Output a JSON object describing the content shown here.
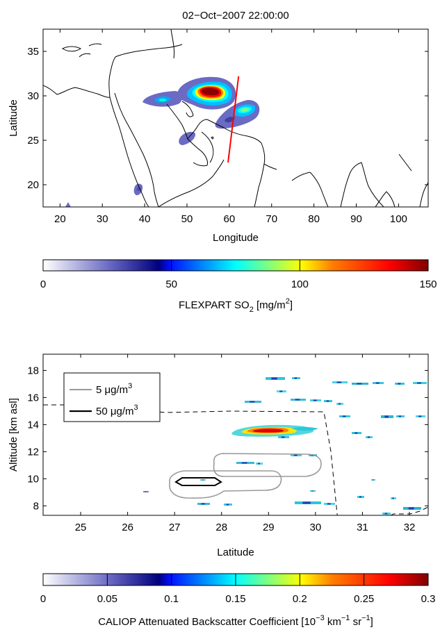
{
  "title": "02−Oct−2007 22:00:00",
  "colors": {
    "red_line": "#ff0000",
    "contour_5": "#999999",
    "contour_50": "#000000",
    "colormap": [
      "#ffffff",
      "#6b6bc4",
      "#00007f",
      "#00ffff",
      "#ffff00",
      "#ff7f00",
      "#ff0000",
      "#7f0000"
    ]
  },
  "map_panel": {
    "xlabel": "Longitude",
    "ylabel": "Latitude",
    "xlim": [
      16,
      107
    ],
    "ylim": [
      17.5,
      37.5
    ],
    "xticks": [
      "20",
      "30",
      "40",
      "50",
      "60",
      "70",
      "80",
      "90",
      "100"
    ],
    "yticks": [
      "20",
      "25",
      "30",
      "35"
    ]
  },
  "colorbar1": {
    "label_main": "FLEXPART SO",
    "label_sub": "2",
    "label_mid": " [mg/m",
    "label_sup": "2",
    "label_end": "]",
    "ticks": [
      "0",
      "50",
      "100",
      "150"
    ]
  },
  "curtain_panel": {
    "xlabel": "Latitude",
    "ylabel": "Altitude [km asl]",
    "xlim": [
      24.2,
      32.4
    ],
    "ylim": [
      7.3,
      19.2
    ],
    "xticks": [
      "25",
      "26",
      "27",
      "28",
      "29",
      "30",
      "31",
      "32"
    ],
    "yticks": [
      "8",
      "10",
      "12",
      "14",
      "16",
      "18"
    ],
    "legend": {
      "item1_value": "5 μg/m",
      "item1_sup": "3",
      "item2_value": "50 μg/m",
      "item2_sup": "3"
    }
  },
  "colorbar2": {
    "label_main": "CALIOP Attenuated Backscatter Coefficient [10",
    "label_sup1": "−3",
    "label_mid": " km",
    "label_sup2": "−1",
    "label_mid2": "  sr",
    "label_sup3": "−1",
    "label_end": "]",
    "ticks": [
      "0",
      "0.05",
      "0.1",
      "0.15",
      "0.2",
      "0.25",
      "0.3"
    ]
  },
  "chart_data": [
    {
      "type": "heatmap",
      "description_source": "FLEXPART SO2 column map",
      "xlabel": "Longitude",
      "ylabel": "Latitude",
      "xlim": [
        16,
        107
      ],
      "ylim": [
        17.5,
        37.5
      ],
      "colorbar_range": [
        0,
        150
      ],
      "colorbar_label": "FLEXPART SO2 [mg/m2]",
      "plume_blobs": [
        {
          "lon": 43.5,
          "lat": 29.5,
          "peak": 30
        },
        {
          "lon": 56,
          "lat": 30.5,
          "peak": 150
        },
        {
          "lon": 64,
          "lat": 28.5,
          "peak": 70
        },
        {
          "lon": 52,
          "lat": 25,
          "peak": 25
        },
        {
          "lon": 39,
          "lat": 19.5,
          "peak": 25
        }
      ],
      "red_line": [
        {
          "lon": 59.7,
          "lat": 22.5
        },
        {
          "lon": 62.2,
          "lat": 32.2
        }
      ]
    },
    {
      "type": "heatmap",
      "description_source": "CALIOP curtain with FLEXPART contours",
      "xlabel": "Latitude",
      "ylabel": "Altitude [km asl]",
      "xlim": [
        24.2,
        32.4
      ],
      "ylim": [
        7.3,
        19.2
      ],
      "colorbar_range": [
        0,
        0.3
      ],
      "contour_levels": [
        "5 μg/m3",
        "50 μg/m3"
      ],
      "main_layer": {
        "lat_start": 28.2,
        "lat_end": 29.9,
        "alt": 13.5,
        "peak": 0.3
      }
    }
  ]
}
